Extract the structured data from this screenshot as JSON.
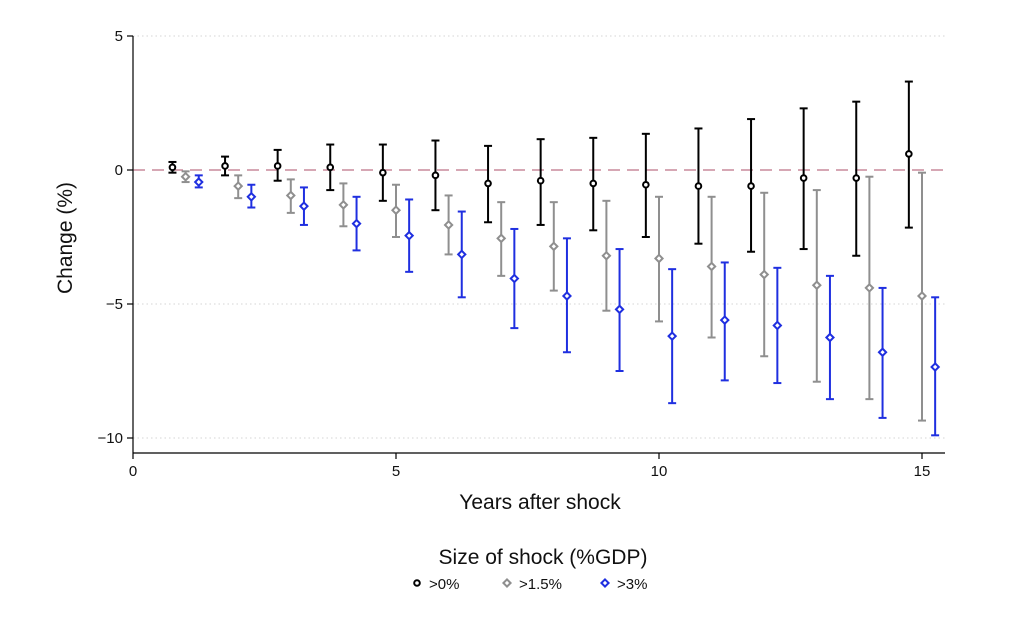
{
  "chart_data": {
    "type": "scatter",
    "title": "",
    "xlabel": "Years after shock",
    "ylabel": "Change (%)",
    "xlim": [
      0,
      15.3
    ],
    "ylim": [
      -10.5,
      5
    ],
    "xticks": [
      0,
      5,
      10,
      15
    ],
    "yticks": [
      5,
      0,
      -5,
      -10
    ],
    "xtick_labels": [
      "0",
      "5",
      "10",
      "15"
    ],
    "ytick_labels": [
      "5",
      "0",
      "−5",
      "−10"
    ],
    "grid": "horizontal dotted",
    "reference_line": {
      "y": 0,
      "style": "dashed",
      "color": "#c98a9b"
    },
    "legend": {
      "title": "Size of shock (%GDP)",
      "placement": "bottom-center"
    },
    "series": [
      {
        "name": ">0%",
        "marker": "circle",
        "color": "#000000",
        "x": [
          0.75,
          1.75,
          2.75,
          3.75,
          4.75,
          5.75,
          6.75,
          7.75,
          8.75,
          9.75,
          10.75,
          11.75,
          12.75,
          13.75,
          14.75
        ],
        "y": [
          0.1,
          0.15,
          0.15,
          0.1,
          -0.1,
          -0.2,
          -0.5,
          -0.4,
          -0.5,
          -0.55,
          -0.6,
          -0.6,
          -0.3,
          -0.3,
          0.6
        ],
        "lower": [
          -0.1,
          -0.2,
          -0.4,
          -0.75,
          -1.15,
          -1.5,
          -1.95,
          -2.05,
          -2.25,
          -2.5,
          -2.75,
          -3.05,
          -2.95,
          -3.2,
          -2.15
        ],
        "upper": [
          0.3,
          0.5,
          0.75,
          0.95,
          0.95,
          1.1,
          0.9,
          1.15,
          1.2,
          1.35,
          1.55,
          1.9,
          2.3,
          2.55,
          3.3
        ]
      },
      {
        "name": ">1.5%",
        "marker": "diamond",
        "color": "#8f8f8f",
        "x": [
          1.0,
          2.0,
          3.0,
          4.0,
          5.0,
          6.0,
          7.0,
          8.0,
          9.0,
          10.0,
          11.0,
          12.0,
          13.0,
          14.0,
          15.0
        ],
        "y": [
          -0.25,
          -0.6,
          -0.95,
          -1.3,
          -1.5,
          -2.05,
          -2.55,
          -2.85,
          -3.2,
          -3.3,
          -3.6,
          -3.9,
          -4.3,
          -4.4,
          -4.7
        ],
        "lower": [
          -0.45,
          -1.05,
          -1.6,
          -2.1,
          -2.5,
          -3.15,
          -3.95,
          -4.5,
          -5.25,
          -5.65,
          -6.25,
          -6.95,
          -7.9,
          -8.55,
          -9.35
        ],
        "upper": [
          -0.05,
          -0.2,
          -0.35,
          -0.5,
          -0.55,
          -0.95,
          -1.2,
          -1.2,
          -1.15,
          -1.0,
          -1.0,
          -0.85,
          -0.75,
          -0.25,
          -0.1
        ]
      },
      {
        "name": ">3%",
        "marker": "diamond",
        "color": "#1f2fe0",
        "x": [
          1.25,
          2.25,
          3.25,
          4.25,
          5.25,
          6.25,
          7.25,
          8.25,
          9.25,
          10.25,
          11.25,
          12.25,
          13.25,
          14.25,
          15.25
        ],
        "y": [
          -0.45,
          -1.0,
          -1.35,
          -2.0,
          -2.45,
          -3.15,
          -4.05,
          -4.7,
          -5.2,
          -6.2,
          -5.6,
          -5.8,
          -6.25,
          -6.8,
          -7.35
        ],
        "lower": [
          -0.65,
          -1.4,
          -2.05,
          -3.0,
          -3.8,
          -4.75,
          -5.9,
          -6.8,
          -7.5,
          -8.7,
          -7.85,
          -7.95,
          -8.55,
          -9.25,
          -9.9
        ],
        "upper": [
          -0.2,
          -0.55,
          -0.65,
          -1.0,
          -1.1,
          -1.55,
          -2.2,
          -2.55,
          -2.95,
          -3.7,
          -3.45,
          -3.65,
          -3.95,
          -4.4,
          -4.75
        ]
      }
    ]
  }
}
